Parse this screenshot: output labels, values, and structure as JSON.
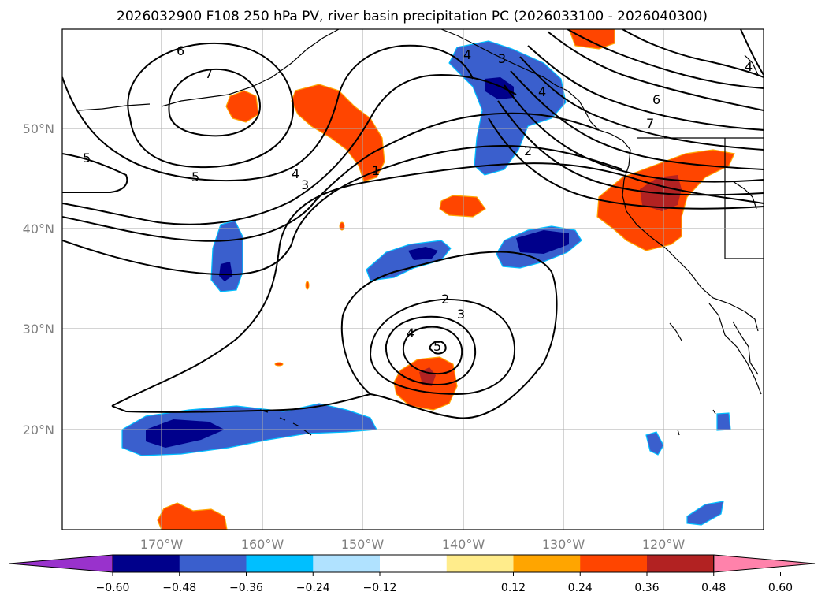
{
  "title": "2026032900 F108 250 hPa PV, river basin precipitation PC (2026033100 - 2026040300)",
  "map": {
    "lon_labels": [
      "170°W",
      "160°W",
      "150°W",
      "140°W",
      "130°W",
      "120°W"
    ],
    "lat_labels": [
      "50°N",
      "40°N",
      "30°N",
      "20°N"
    ],
    "extent": {
      "lon_min": -180,
      "lon_max": -110,
      "lat_min": 10,
      "lat_max": 60
    },
    "contour_variable": "250 hPa PV",
    "contour_labels": [
      "1",
      "2",
      "3",
      "4",
      "5",
      "6",
      "7"
    ],
    "fill_variable": "river basin precipitation PC"
  },
  "colorbar": {
    "ticks": [
      "−0.60",
      "−0.48",
      "−0.36",
      "−0.24",
      "−0.12",
      "0.12",
      "0.24",
      "0.36",
      "0.48",
      "0.60"
    ],
    "colors": [
      "#9932cc",
      "#00008b",
      "#3a5fcd",
      "#00bfff",
      "#b0e2ff",
      "#ffffff",
      "#ffec8b",
      "#ffa500",
      "#ff4500",
      "#b22222",
      "#ff82ab"
    ],
    "extend": "both"
  }
}
